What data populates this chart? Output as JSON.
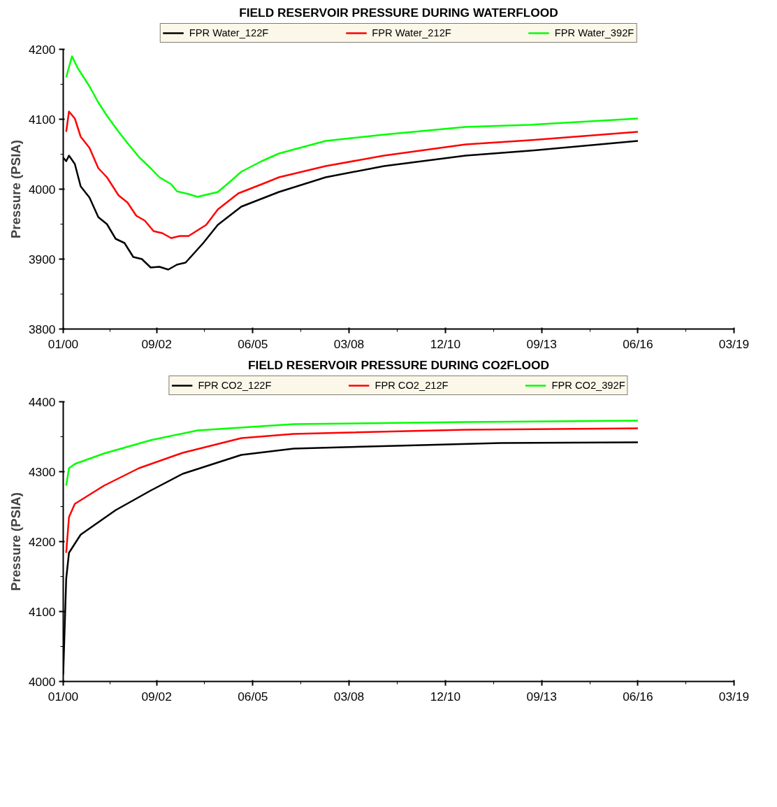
{
  "chart_data": [
    {
      "type": "line",
      "title": "FIELD RESERVOIR PRESSURE DURING WATERFLOOD",
      "ylabel": "Pressure (PSIA)",
      "legend": "top",
      "xlim": [
        "2000-01",
        "2019-03"
      ],
      "xticks": [
        {
          "value": "2000-01",
          "label": "01/00"
        },
        {
          "value": "2002-09",
          "label": "09/02"
        },
        {
          "value": "2005-06",
          "label": "06/05"
        },
        {
          "value": "2008-03",
          "label": "03/08"
        },
        {
          "value": "2010-12",
          "label": "12/10"
        },
        {
          "value": "2013-09",
          "label": "09/13"
        },
        {
          "value": "2016-06",
          "label": "06/16"
        },
        {
          "value": "2019-03",
          "label": "03/19"
        }
      ],
      "ylim": [
        3800,
        4200
      ],
      "yticks": [
        3800,
        3900,
        4000,
        4100,
        4200
      ],
      "series": [
        {
          "name": "FPR Water_122F",
          "color": "#000000",
          "x": [
            "2000-01",
            "2000-02",
            "2000-03",
            "2000-05",
            "2000-07",
            "2000-10",
            "2001-01",
            "2001-04",
            "2001-07",
            "2001-10",
            "2002-01",
            "2002-04",
            "2002-07",
            "2002-10",
            "2003-01",
            "2003-04",
            "2003-07",
            "2004-01",
            "2004-06",
            "2005-02",
            "2006-03",
            "2007-07",
            "2009-03",
            "2011-07",
            "2013-05",
            "2016-06"
          ],
          "values": [
            4045,
            4040,
            4048,
            4036,
            4004,
            3988,
            3960,
            3950,
            3929,
            3923,
            3903,
            3900,
            3888,
            3889,
            3885,
            3892,
            3895,
            3923,
            3949,
            3975,
            3996,
            4017,
            4033,
            4048,
            4055,
            4069
          ]
        },
        {
          "name": "FPR Water_212F",
          "color": "#ff0000",
          "x": [
            "2000-02",
            "2000-03",
            "2000-05",
            "2000-07",
            "2000-10",
            "2001-01",
            "2001-04",
            "2001-08",
            "2001-11",
            "2002-02",
            "2002-05",
            "2002-08",
            "2002-11",
            "2003-02",
            "2003-05",
            "2003-08",
            "2004-02",
            "2004-06",
            "2005-01",
            "2005-09",
            "2006-03",
            "2007-07",
            "2009-03",
            "2011-07",
            "2013-05",
            "2016-06"
          ],
          "values": [
            4082,
            4111,
            4101,
            4075,
            4059,
            4030,
            4017,
            3991,
            3981,
            3962,
            3955,
            3940,
            3937,
            3930,
            3933,
            3933,
            3949,
            3971,
            3994,
            4007,
            4017,
            4033,
            4048,
            4064,
            4070,
            4082
          ]
        },
        {
          "name": "FPR Water_392F",
          "color": "#00ff00",
          "x": [
            "2000-02",
            "2000-04",
            "2000-06",
            "2000-10",
            "2001-01",
            "2001-04",
            "2001-08",
            "2001-11",
            "2002-03",
            "2002-07",
            "2002-10",
            "2003-02",
            "2003-04",
            "2003-08",
            "2003-11",
            "2004-06",
            "2004-10",
            "2005-02",
            "2005-09",
            "2006-03",
            "2007-07",
            "2009-03",
            "2011-07",
            "2013-05",
            "2016-06"
          ],
          "values": [
            4160,
            4190,
            4173,
            4147,
            4124,
            4105,
            4082,
            4066,
            4046,
            4030,
            4017,
            4007,
            3997,
            3993,
            3989,
            3996,
            4010,
            4025,
            4040,
            4051,
            4069,
            4078,
            4089,
            4092,
            4101
          ]
        }
      ]
    },
    {
      "type": "line",
      "title": "FIELD RESERVOIR PRESSURE DURING CO2FLOOD",
      "ylabel": "Pressure (PSIA)",
      "legend": "top",
      "xlim": [
        "2000-01",
        "2019-03"
      ],
      "xticks": [
        {
          "value": "2000-01",
          "label": "01/00"
        },
        {
          "value": "2002-09",
          "label": "09/02"
        },
        {
          "value": "2005-06",
          "label": "06/05"
        },
        {
          "value": "2008-03",
          "label": "03/08"
        },
        {
          "value": "2010-12",
          "label": "12/10"
        },
        {
          "value": "2013-09",
          "label": "09/13"
        },
        {
          "value": "2016-06",
          "label": "06/16"
        },
        {
          "value": "2019-03",
          "label": "03/19"
        }
      ],
      "ylim": [
        4000,
        4400
      ],
      "yticks": [
        4000,
        4100,
        4200,
        4300,
        4400
      ],
      "series": [
        {
          "name": "FPR CO2_122F",
          "color": "#000000",
          "x": [
            "2000-01",
            "2000-02",
            "2000-03",
            "2000-07",
            "2001-07",
            "2002-07",
            "2003-06",
            "2005-02",
            "2006-08",
            "2009-07",
            "2012-07",
            "2016-06"
          ],
          "values": [
            4010,
            4147,
            4184,
            4210,
            4245,
            4273,
            4297,
            4324,
            4333,
            4337,
            4341,
            4342
          ]
        },
        {
          "name": "FPR CO2_212F",
          "color": "#ff0000",
          "x": [
            "2000-02",
            "2000-03",
            "2000-05",
            "2001-03",
            "2002-03",
            "2003-06",
            "2005-02",
            "2006-08",
            "2011-07",
            "2016-06"
          ],
          "values": [
            4184,
            4235,
            4254,
            4280,
            4305,
            4327,
            4348,
            4354,
            4360,
            4362
          ]
        },
        {
          "name": "FPR CO2_392F",
          "color": "#00ff00",
          "x": [
            "2000-02",
            "2000-03",
            "2000-05",
            "2001-03",
            "2002-07",
            "2003-11",
            "2006-08",
            "2011-07",
            "2016-06"
          ],
          "values": [
            4280,
            4305,
            4311,
            4326,
            4345,
            4359,
            4368,
            4371,
            4373
          ]
        }
      ]
    }
  ]
}
